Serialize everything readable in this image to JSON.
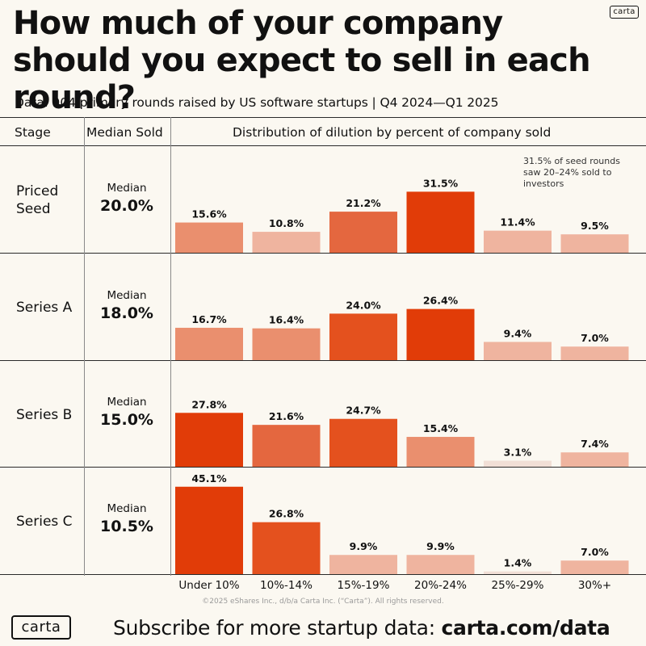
{
  "logo_text": "carta",
  "title": "How much of your company should you expect to sell in each round?",
  "subtitle": "Data: 904 primary rounds raised by US software startups | Q4 2024—Q1 2025",
  "headers": {
    "stage": "Stage",
    "median": "Median Sold",
    "distribution": "Distribution of dilution by percent of company sold"
  },
  "median_word": "Median",
  "annotation": "31.5% of seed rounds saw 20–24% sold to investors",
  "copyright": "©2025 eShares Inc., d/b/a Carta Inc. (“Carta”). All rights reserved.",
  "footer": {
    "logo": "carta",
    "cta_text": "Subscribe for more startup data: ",
    "cta_link": "carta.com/data"
  },
  "rows": [
    {
      "stage": "Priced Seed",
      "median": "20.0%"
    },
    {
      "stage": "Series A",
      "median": "18.0%"
    },
    {
      "stage": "Series B",
      "median": "15.0%"
    },
    {
      "stage": "Series C",
      "median": "10.5%"
    }
  ],
  "chart_data": {
    "type": "bar",
    "categories": [
      "Under 10%",
      "10%-14%",
      "15%-19%",
      "20%-24%",
      "25%-29%",
      "30%+"
    ],
    "series": [
      {
        "name": "Priced Seed",
        "values": [
          15.6,
          10.8,
          21.2,
          31.5,
          11.4,
          9.5
        ]
      },
      {
        "name": "Series A",
        "values": [
          16.7,
          16.4,
          24.0,
          26.4,
          9.4,
          7.0
        ]
      },
      {
        "name": "Series B",
        "values": [
          27.8,
          21.6,
          24.7,
          15.4,
          3.1,
          7.4
        ]
      },
      {
        "name": "Series C",
        "values": [
          45.1,
          26.8,
          9.9,
          9.9,
          1.4,
          7.0
        ]
      }
    ],
    "value_suffix": "%",
    "colors": {
      "lightest": "#f1dfd6",
      "light": "#efb49f",
      "mid": "#ea8f6e",
      "strong": "#e4673f",
      "stronger": "#e4511e",
      "max": "#e13c08"
    }
  }
}
